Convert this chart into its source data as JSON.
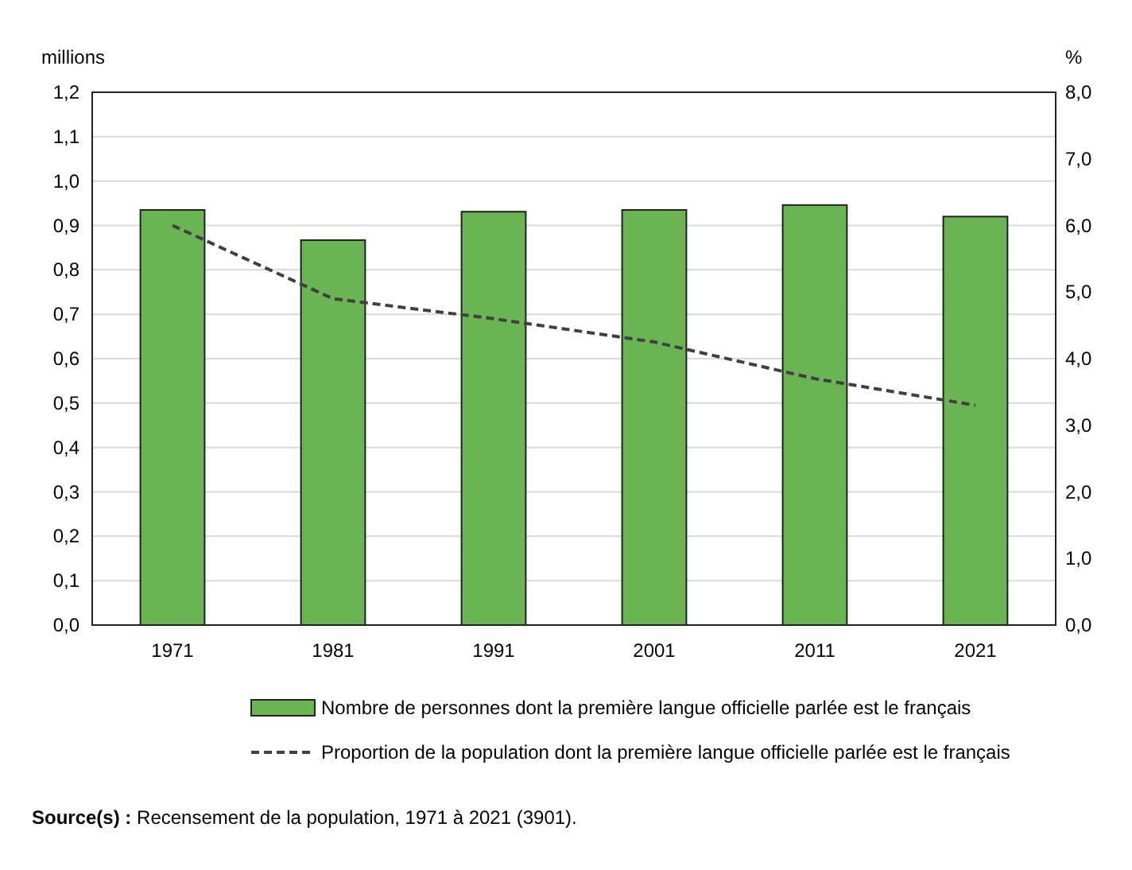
{
  "chart_data": {
    "type": "bar",
    "categories": [
      "1971",
      "1981",
      "1991",
      "2001",
      "2011",
      "2021"
    ],
    "series": [
      {
        "name": "Nombre de personnes dont la première langue officielle parlée est le français",
        "color": "#6ab453",
        "values": [
          0.935,
          0.867,
          0.931,
          0.935,
          0.946,
          0.92
        ]
      },
      {
        "name": "Proportion de la population dont la première langue officielle parlée est le français",
        "type": "line",
        "axis": "y2",
        "color": "#404040",
        "line_style": "dashed",
        "values": [
          6.0,
          4.9,
          4.6,
          4.25,
          3.7,
          3.3
        ]
      }
    ],
    "ylabel": "millions",
    "y2label": "%",
    "ylim": [
      0,
      1.2
    ],
    "yticks": [
      {
        "value": 0,
        "label": "0,0"
      },
      {
        "value": 0.1,
        "label": "0,1"
      },
      {
        "value": 0.2,
        "label": "0,2"
      },
      {
        "value": 0.3,
        "label": "0,3"
      },
      {
        "value": 0.4,
        "label": "0,4"
      },
      {
        "value": 0.5,
        "label": "0,5"
      },
      {
        "value": 0.6,
        "label": "0,6"
      },
      {
        "value": 0.7,
        "label": "0,7"
      },
      {
        "value": 0.8,
        "label": "0,8"
      },
      {
        "value": 0.9,
        "label": "0,9"
      },
      {
        "value": 1.0,
        "label": "1,0"
      },
      {
        "value": 1.1,
        "label": "1,1"
      },
      {
        "value": 1.2,
        "label": "1,2"
      }
    ],
    "y2lim": [
      0,
      8
    ],
    "y2ticks": [
      {
        "value": 0,
        "label": "0,0"
      },
      {
        "value": 1,
        "label": "1,0"
      },
      {
        "value": 2,
        "label": "2,0"
      },
      {
        "value": 3,
        "label": "3,0"
      },
      {
        "value": 4,
        "label": "4,0"
      },
      {
        "value": 5,
        "label": "5,0"
      },
      {
        "value": 6,
        "label": "6,0"
      },
      {
        "value": 7,
        "label": "7,0"
      },
      {
        "value": 8,
        "label": "8,0"
      }
    ],
    "grid": "y",
    "legend": "bottom",
    "annotations": [
      "Source(s) : Recensement de la population, 1971 à 2021 (3901)."
    ]
  }
}
